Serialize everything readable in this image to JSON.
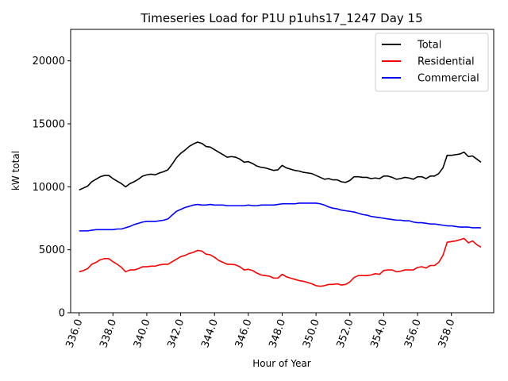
{
  "chart_data": {
    "type": "line",
    "title": "Timeseries Load for P1U p1uhs17_1247  Day 15",
    "xlabel": "Hour of Year",
    "ylabel": "kW total",
    "xlim": [
      335.5,
      360.5
    ],
    "ylim": [
      0,
      22500
    ],
    "xticks": [
      336,
      338,
      340,
      342,
      344,
      346,
      348,
      350,
      352,
      354,
      356,
      358
    ],
    "xtick_labels": [
      "336.0",
      "338.0",
      "340.0",
      "342.0",
      "344.0",
      "346.0",
      "348.0",
      "350.0",
      "352.0",
      "354.0",
      "356.0",
      "358.0"
    ],
    "yticks": [
      0,
      5000,
      10000,
      15000,
      20000
    ],
    "ytick_labels": [
      "0",
      "5000",
      "10000",
      "15000",
      "20000"
    ],
    "legend_position": "top-right",
    "x": [
      336.0,
      336.25,
      336.5,
      336.75,
      337.0,
      337.25,
      337.5,
      337.75,
      338.0,
      338.25,
      338.5,
      338.75,
      339.0,
      339.25,
      339.5,
      339.75,
      340.0,
      340.25,
      340.5,
      340.75,
      341.0,
      341.25,
      341.5,
      341.75,
      342.0,
      342.25,
      342.5,
      342.75,
      343.0,
      343.25,
      343.5,
      343.75,
      344.0,
      344.25,
      344.5,
      344.75,
      345.0,
      345.25,
      345.5,
      345.75,
      346.0,
      346.25,
      346.5,
      346.75,
      347.0,
      347.25,
      347.5,
      347.75,
      348.0,
      348.25,
      348.5,
      348.75,
      349.0,
      349.25,
      349.5,
      349.75,
      350.0,
      350.25,
      350.5,
      350.75,
      351.0,
      351.25,
      351.5,
      351.75,
      352.0,
      352.25,
      352.5,
      352.75,
      353.0,
      353.25,
      353.5,
      353.75,
      354.0,
      354.25,
      354.5,
      354.75,
      355.0,
      355.25,
      355.5,
      355.75,
      356.0,
      356.25,
      356.5,
      356.75,
      357.0,
      357.25,
      357.5,
      357.75,
      358.0,
      358.25,
      358.5,
      358.75,
      359.0,
      359.25,
      359.5,
      359.75
    ],
    "series": [
      {
        "name": "Total",
        "color": "#000000",
        "values": [
          9750,
          9900,
          10050,
          10400,
          10600,
          10800,
          10900,
          10900,
          10650,
          10450,
          10250,
          10000,
          10250,
          10400,
          10600,
          10850,
          10950,
          11000,
          10950,
          11100,
          11200,
          11350,
          11800,
          12300,
          12650,
          12900,
          13200,
          13400,
          13550,
          13450,
          13200,
          13150,
          12950,
          12750,
          12550,
          12350,
          12400,
          12350,
          12200,
          11950,
          12000,
          11850,
          11650,
          11550,
          11500,
          11400,
          11300,
          11350,
          11700,
          11500,
          11400,
          11300,
          11250,
          11150,
          11100,
          11050,
          10900,
          10750,
          10600,
          10650,
          10550,
          10550,
          10400,
          10350,
          10500,
          10800,
          10800,
          10750,
          10750,
          10650,
          10700,
          10650,
          10850,
          10850,
          10750,
          10600,
          10650,
          10750,
          10700,
          10600,
          10800,
          10800,
          10650,
          10850,
          10850,
          11050,
          11500,
          12500,
          12500,
          12550,
          12600,
          12750,
          12400,
          12450,
          12200,
          11950
        ]
      },
      {
        "name": "Residential",
        "color": "#ff0000",
        "values": [
          3250,
          3350,
          3500,
          3850,
          4000,
          4200,
          4300,
          4300,
          4050,
          3850,
          3600,
          3250,
          3400,
          3400,
          3500,
          3650,
          3650,
          3700,
          3700,
          3800,
          3850,
          3850,
          4050,
          4250,
          4450,
          4550,
          4700,
          4800,
          4950,
          4900,
          4650,
          4600,
          4400,
          4150,
          4000,
          3850,
          3850,
          3800,
          3650,
          3400,
          3450,
          3350,
          3150,
          3000,
          2950,
          2900,
          2750,
          2750,
          3050,
          2850,
          2750,
          2650,
          2550,
          2500,
          2400,
          2300,
          2150,
          2100,
          2150,
          2250,
          2250,
          2300,
          2200,
          2250,
          2450,
          2800,
          2950,
          2950,
          2950,
          3000,
          3100,
          3050,
          3350,
          3400,
          3400,
          3250,
          3300,
          3400,
          3400,
          3400,
          3600,
          3650,
          3550,
          3750,
          3750,
          4000,
          4550,
          5600,
          5650,
          5700,
          5800,
          5900,
          5550,
          5700,
          5400,
          5200
        ]
      },
      {
        "name": "Commercial",
        "color": "#0000ff",
        "values": [
          6500,
          6500,
          6500,
          6550,
          6600,
          6600,
          6600,
          6600,
          6600,
          6650,
          6650,
          6750,
          6850,
          7000,
          7100,
          7200,
          7250,
          7250,
          7250,
          7300,
          7350,
          7450,
          7750,
          8050,
          8200,
          8350,
          8450,
          8550,
          8600,
          8550,
          8550,
          8600,
          8550,
          8550,
          8550,
          8500,
          8500,
          8500,
          8500,
          8500,
          8550,
          8500,
          8500,
          8550,
          8550,
          8550,
          8550,
          8600,
          8650,
          8650,
          8650,
          8650,
          8700,
          8700,
          8700,
          8700,
          8700,
          8650,
          8550,
          8400,
          8300,
          8250,
          8150,
          8100,
          8050,
          8000,
          7900,
          7800,
          7750,
          7650,
          7600,
          7550,
          7500,
          7450,
          7400,
          7350,
          7350,
          7300,
          7300,
          7200,
          7150,
          7150,
          7100,
          7050,
          7050,
          7000,
          6950,
          6900,
          6900,
          6850,
          6800,
          6800,
          6800,
          6750,
          6750,
          6750
        ]
      }
    ]
  }
}
